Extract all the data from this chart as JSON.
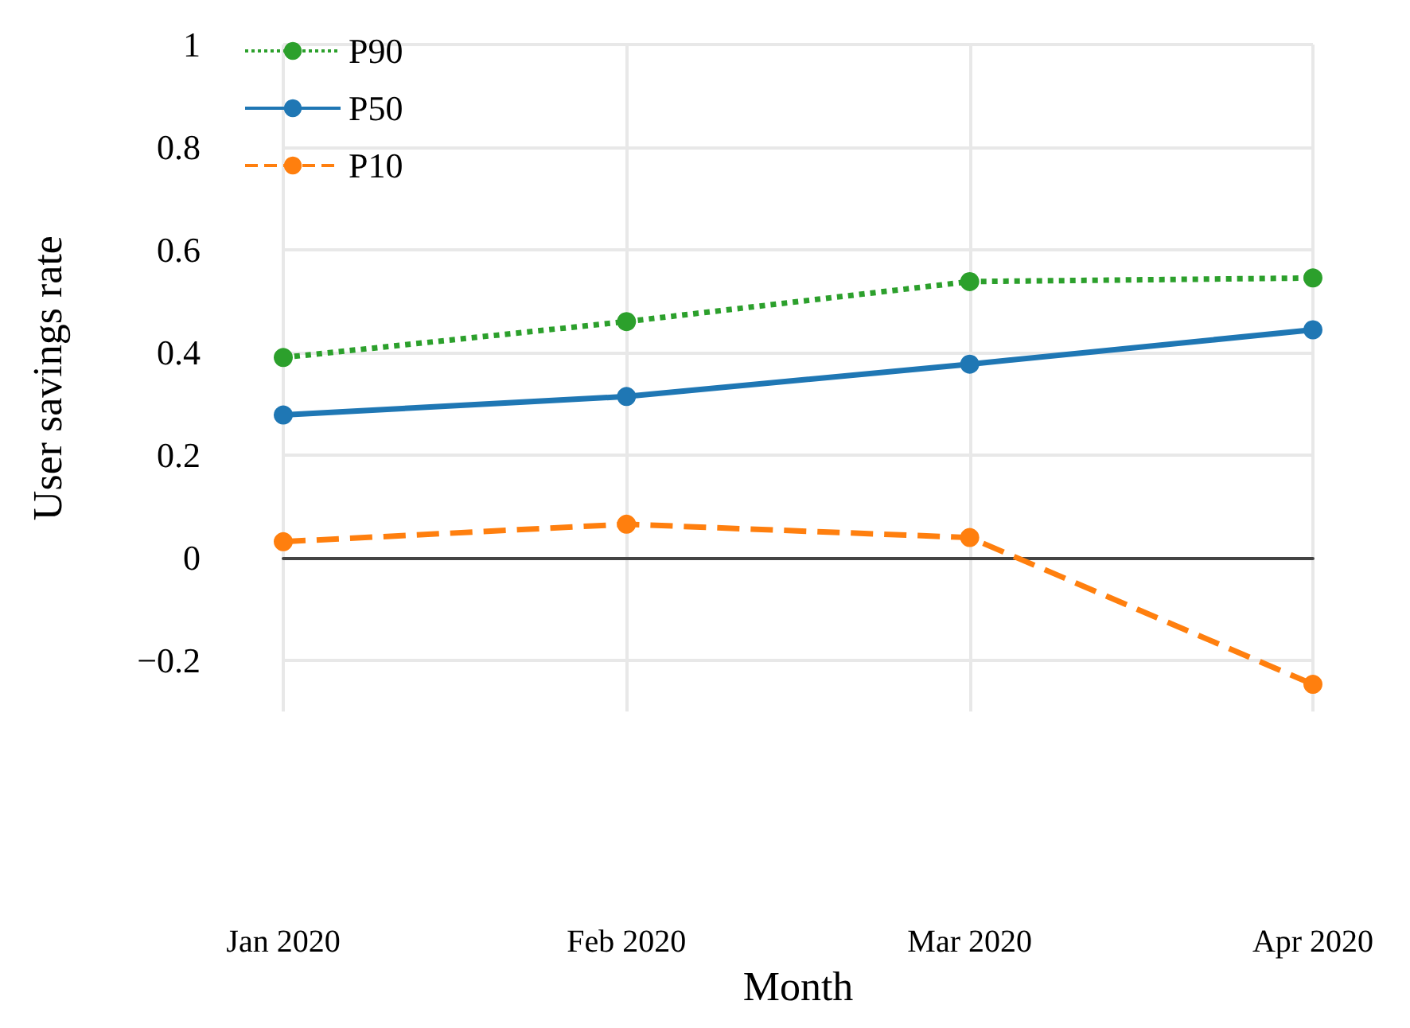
{
  "chart_data": {
    "type": "line",
    "xlabel": "Month",
    "ylabel": "User savings rate",
    "categories": [
      "Jan 2020",
      "Feb 2020",
      "Mar 2020",
      "Apr 2020"
    ],
    "series": [
      {
        "name": "P90",
        "color": "#2ca02c",
        "line_style": "dotted",
        "values": [
          0.39,
          0.46,
          0.538,
          0.545
        ]
      },
      {
        "name": "P50",
        "color": "#1f77b4",
        "line_style": "solid",
        "values": [
          0.278,
          0.314,
          0.377,
          0.444
        ]
      },
      {
        "name": "P10",
        "color": "#ff7f0e",
        "line_style": "dashed",
        "values": [
          0.031,
          0.065,
          0.039,
          -0.247
        ]
      }
    ],
    "ylim": [
      -0.3,
      1
    ],
    "yticks": [
      {
        "value": -0.2,
        "label": "−0.2"
      },
      0,
      0.2,
      0.4,
      0.6,
      0.8,
      1
    ],
    "grid": true,
    "legend": "top left",
    "marker": "circle"
  }
}
